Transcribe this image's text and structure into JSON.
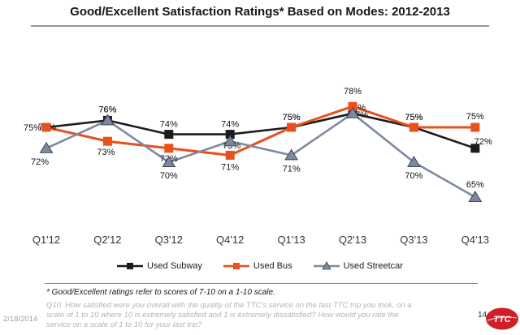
{
  "slide": {
    "title": "Good/Excellent Satisfaction Ratings* Based on Modes: 2012-2013",
    "footnote": "* Good/Excellent ratings refer to scores of 7-10 on a 1-10 scale.",
    "question_text": "Q10. How satisfied were you overall with the quality of the TTC's service on the last TTC trip you took, on a scale of 1 to 10 where 10 is extremely satisfied and 1 is extremely dissatisfied? How would you rate the service on a scale of 1 to 10 for your last trip?",
    "date": "2/18/2014",
    "page_number": "14",
    "logo_text": "TTC",
    "logo_color": "#cf2029"
  },
  "chart_data": {
    "type": "line",
    "title": "Good/Excellent Satisfaction Ratings* Based on Modes: 2012-2013",
    "categories": [
      "Q1'12",
      "Q2'12",
      "Q3'12",
      "Q4'12",
      "Q1'13",
      "Q2'13",
      "Q3'13",
      "Q4'13"
    ],
    "series": [
      {
        "name": "Used Subway",
        "color": "#1b1b1f",
        "marker": "square",
        "values": [
          75,
          76,
          74,
          74,
          75,
          77,
          75,
          72
        ]
      },
      {
        "name": "Used Bus",
        "color": "#e8501c",
        "marker": "square",
        "values": [
          75,
          73,
          72,
          71,
          75,
          78,
          75,
          75
        ]
      },
      {
        "name": "Used Streetcar",
        "color": "#7e89a0",
        "marker": "triangle",
        "values": [
          72,
          76,
          70,
          73,
          71,
          77,
          70,
          65
        ]
      }
    ],
    "value_suffix": "%",
    "ylim": [
      60,
      80
    ],
    "grid": false,
    "legend_position": "bottom",
    "xlabel": "",
    "ylabel": ""
  }
}
